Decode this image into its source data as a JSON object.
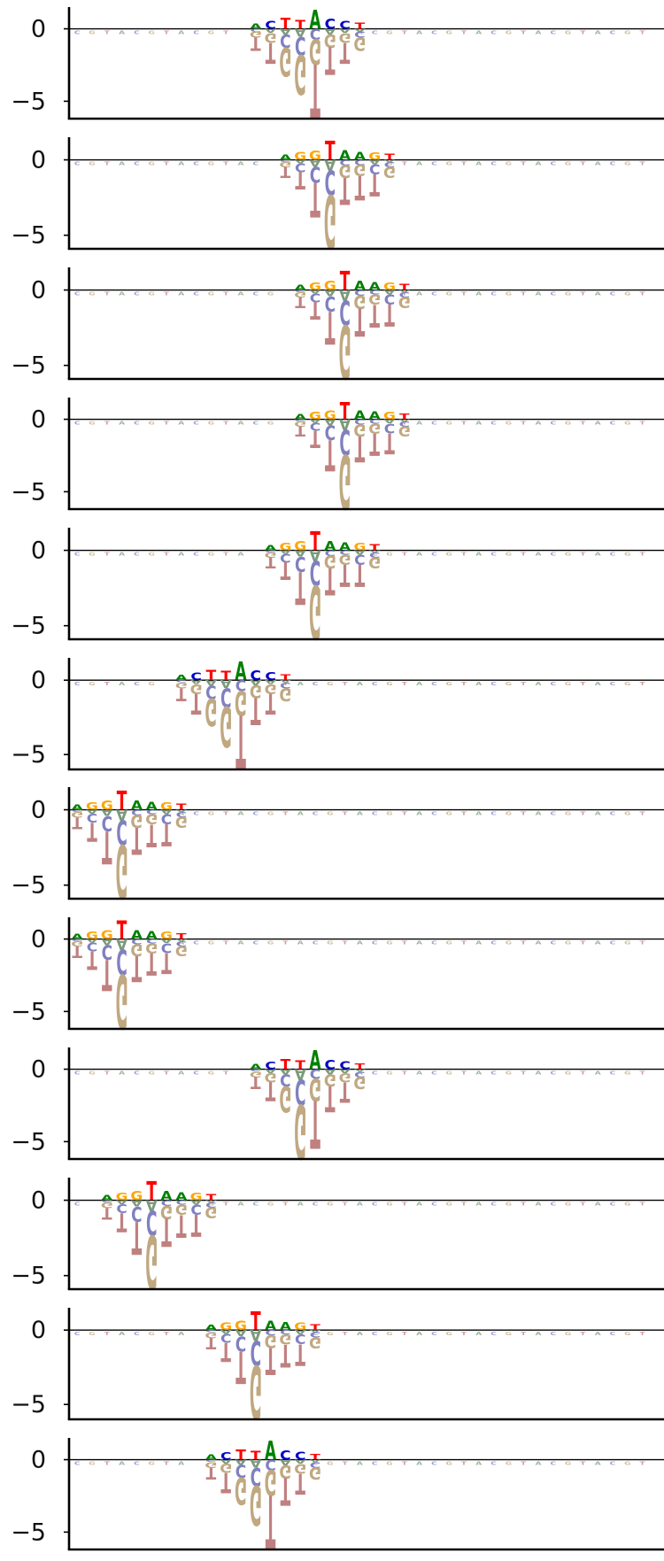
{
  "chart_data": [
    {
      "type": "logo",
      "center": 12,
      "motif": "ACTTACCT",
      "ymin": -6.2,
      "ymax": 1.5,
      "yticks": [
        {
          "value": 0,
          "label": "0"
        },
        {
          "value": -5,
          "label": "−5"
        }
      ],
      "top_heights": [
        0.35,
        0.55,
        0.75,
        0.6,
        1.3,
        0.7,
        0.55,
        0.45
      ],
      "bottom_depths": [
        1.5,
        2.4,
        3.3,
        4.6,
        6.2,
        3.2,
        2.4,
        1.5
      ]
    },
    {
      "type": "logo",
      "center": 14,
      "motif": "AGGTAAGT",
      "ymin": -5.9,
      "ymax": 1.5,
      "yticks": [
        {
          "value": 0,
          "label": "0"
        },
        {
          "value": -5,
          "label": "−5"
        }
      ],
      "top_heights": [
        0.35,
        0.55,
        0.6,
        1.25,
        0.65,
        0.55,
        0.5,
        0.4
      ],
      "bottom_depths": [
        1.2,
        2.0,
        3.8,
        5.9,
        3.0,
        2.7,
        2.4,
        1.2
      ]
    },
    {
      "type": "logo",
      "center": 15,
      "motif": "AGGTAAGT",
      "ymin": -5.9,
      "ymax": 1.5,
      "yticks": [
        {
          "value": 0,
          "label": "0"
        },
        {
          "value": -5,
          "label": "−5"
        }
      ],
      "top_heights": [
        0.35,
        0.5,
        0.6,
        1.25,
        0.6,
        0.55,
        0.5,
        0.4
      ],
      "bottom_depths": [
        1.2,
        2.0,
        3.6,
        5.9,
        3.1,
        2.5,
        2.4,
        1.2
      ]
    },
    {
      "type": "logo",
      "center": 15,
      "motif": "AGGTAAGT",
      "ymin": -6.2,
      "ymax": 1.5,
      "yticks": [
        {
          "value": 0,
          "label": "0"
        },
        {
          "value": -5,
          "label": "−5"
        }
      ],
      "top_heights": [
        0.35,
        0.5,
        0.6,
        1.2,
        0.6,
        0.55,
        0.5,
        0.4
      ],
      "bottom_depths": [
        1.2,
        2.0,
        3.6,
        6.2,
        3.0,
        2.5,
        2.4,
        1.2
      ]
    },
    {
      "type": "logo",
      "center": 13,
      "motif": "AGGTAAGT",
      "ymin": -5.9,
      "ymax": 1.5,
      "yticks": [
        {
          "value": 0,
          "label": "0"
        },
        {
          "value": -5,
          "label": "−5"
        }
      ],
      "top_heights": [
        0.35,
        0.5,
        0.6,
        1.25,
        0.6,
        0.55,
        0.5,
        0.4
      ],
      "bottom_depths": [
        1.2,
        2.0,
        3.6,
        5.9,
        3.0,
        2.4,
        2.4,
        1.2
      ]
    },
    {
      "type": "logo",
      "center": 7,
      "motif": "ACTTACCT",
      "ymin": -6.0,
      "ymax": 1.5,
      "yticks": [
        {
          "value": 0,
          "label": "0"
        },
        {
          "value": -5,
          "label": "−5"
        }
      ],
      "top_heights": [
        0.35,
        0.5,
        0.7,
        0.6,
        1.25,
        0.65,
        0.55,
        0.4
      ],
      "bottom_depths": [
        1.4,
        2.3,
        3.1,
        4.5,
        6.0,
        3.0,
        2.3,
        1.4
      ]
    },
    {
      "type": "logo",
      "center": 0,
      "motif": "AGGTAAGT",
      "ymin": -5.9,
      "ymax": 1.5,
      "yticks": [
        {
          "value": 0,
          "label": "0"
        },
        {
          "value": -5,
          "label": "−5"
        }
      ],
      "top_heights": [
        0.35,
        0.5,
        0.6,
        1.25,
        0.6,
        0.55,
        0.5,
        0.4
      ],
      "bottom_depths": [
        1.3,
        2.1,
        3.6,
        5.9,
        3.0,
        2.5,
        2.4,
        1.2
      ]
    },
    {
      "type": "logo",
      "center": 0,
      "motif": "AGGTAAGT",
      "ymin": -6.2,
      "ymax": 1.5,
      "yticks": [
        {
          "value": 0,
          "label": "0"
        },
        {
          "value": -5,
          "label": "−5"
        }
      ],
      "top_heights": [
        0.35,
        0.5,
        0.6,
        1.25,
        0.6,
        0.55,
        0.5,
        0.4
      ],
      "bottom_depths": [
        1.3,
        2.1,
        3.6,
        6.2,
        3.0,
        2.5,
        2.4,
        1.2
      ]
    },
    {
      "type": "logo",
      "center": 12,
      "motif": "ACTTACCT",
      "ymin": -6.2,
      "ymax": 1.5,
      "yticks": [
        {
          "value": 0,
          "label": "0"
        },
        {
          "value": -5,
          "label": "−5"
        }
      ],
      "top_heights": [
        0.35,
        0.5,
        0.7,
        0.6,
        1.3,
        0.65,
        0.55,
        0.4
      ],
      "bottom_depths": [
        1.4,
        2.2,
        3.0,
        6.2,
        5.5,
        3.0,
        2.3,
        1.4
      ]
    },
    {
      "type": "logo",
      "center": 2,
      "motif": "AGGTAAGT",
      "ymin": -5.9,
      "ymax": 1.5,
      "yticks": [
        {
          "value": 0,
          "label": "0"
        },
        {
          "value": -5,
          "label": "−5"
        }
      ],
      "top_heights": [
        0.35,
        0.5,
        0.6,
        1.25,
        0.6,
        0.55,
        0.5,
        0.4
      ],
      "bottom_depths": [
        1.3,
        2.1,
        3.6,
        5.9,
        3.1,
        2.5,
        2.4,
        1.2
      ]
    },
    {
      "type": "logo",
      "center": 9,
      "motif": "AGGTAAGT",
      "ymin": -6.0,
      "ymax": 1.5,
      "yticks": [
        {
          "value": 0,
          "label": "0"
        },
        {
          "value": -5,
          "label": "−5"
        }
      ],
      "top_heights": [
        0.35,
        0.5,
        0.6,
        1.25,
        0.6,
        0.55,
        0.5,
        0.4
      ],
      "bottom_depths": [
        1.3,
        2.1,
        3.6,
        6.0,
        3.0,
        2.5,
        2.4,
        1.2
      ]
    },
    {
      "type": "logo",
      "center": 9,
      "motif": "ACTTACCT",
      "ymin": -6.2,
      "ymax": 1.5,
      "yticks": [
        {
          "value": 0,
          "label": "0"
        },
        {
          "value": -5,
          "label": "−5"
        }
      ],
      "top_heights": [
        0.35,
        0.5,
        0.7,
        0.6,
        1.3,
        0.65,
        0.55,
        0.4
      ],
      "bottom_depths": [
        1.4,
        2.3,
        3.1,
        4.6,
        6.2,
        3.2,
        2.4,
        1.4
      ]
    }
  ],
  "colors": {
    "A": "#008000",
    "C": "#0000cc",
    "G": "#ffa500",
    "T": "#ff0000",
    "neg_A": "#7b9a7b",
    "neg_C": "#8080c0",
    "neg_G": "#c0a880",
    "neg_T": "#c08080"
  }
}
